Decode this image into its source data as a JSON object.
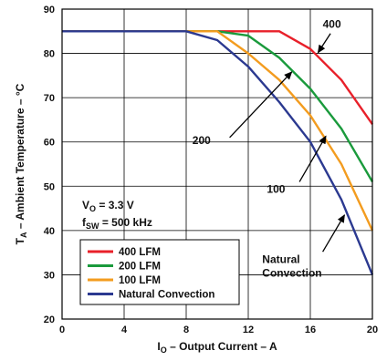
{
  "chart_data": {
    "type": "line",
    "xlabel_main": "I",
    "xlabel_sub": "O",
    "xlabel_rest": " – Output Current – A",
    "ylabel_main": "T",
    "ylabel_sub": "A",
    "ylabel_rest": " – Ambient Temperature – °C",
    "xlim": [
      0,
      20
    ],
    "ylim": [
      20,
      90
    ],
    "xticks": [
      "0",
      "4",
      "8",
      "12",
      "16",
      "20"
    ],
    "yticks": [
      "20",
      "30",
      "40",
      "50",
      "60",
      "70",
      "80",
      "90"
    ],
    "grid": true,
    "series": [
      {
        "name": "400 LFM",
        "color": "#e8202a",
        "x": [
          0,
          8,
          10,
          12,
          14,
          16,
          18,
          20
        ],
        "y": [
          85,
          85,
          85,
          85,
          85,
          81,
          74,
          64
        ]
      },
      {
        "name": "200 LFM",
        "color": "#1a9a3c",
        "x": [
          0,
          8,
          10,
          12,
          14,
          16,
          18,
          20
        ],
        "y": [
          85,
          85,
          85,
          84,
          79,
          72,
          63,
          51
        ]
      },
      {
        "name": "100 LFM",
        "color": "#f39c1f",
        "x": [
          0,
          8,
          10,
          12,
          14,
          16,
          18,
          20
        ],
        "y": [
          85,
          85,
          85,
          80,
          74,
          66,
          55,
          40
        ]
      },
      {
        "name": "Natural Convection",
        "color": "#2b3990",
        "x": [
          0,
          8,
          10,
          12,
          14,
          16,
          18,
          20
        ],
        "y": [
          85,
          85,
          83,
          77,
          69,
          60,
          47,
          30
        ]
      }
    ],
    "conditions": {
      "vo_main": "V",
      "vo_sub": "O",
      "vo_rest": " = 3.3 V",
      "fsw_main": "f",
      "fsw_sub": "SW",
      "fsw_rest": " = 500 kHz"
    },
    "annotations": [
      {
        "label": "400",
        "text_x": 16.8,
        "text_y": 85.8,
        "arrow_from": [
          17.3,
          84.5
        ],
        "arrow_to": [
          16.5,
          80.2
        ]
      },
      {
        "label": "200",
        "text_x": 8.4,
        "text_y": 59.5,
        "arrow_from": [
          10.8,
          61.0
        ],
        "arrow_to": [
          14.8,
          75.8
        ]
      },
      {
        "label": "100",
        "text_x": 13.2,
        "text_y": 48.5,
        "arrow_from": [
          15.3,
          51.0
        ],
        "arrow_to": [
          17.0,
          61.3
        ]
      },
      {
        "label": "Natural",
        "label2": "Convection",
        "text_x": 12.9,
        "text_y": 32.7,
        "arrow_from": [
          16.8,
          35.2
        ],
        "arrow_to": [
          18.2,
          43.5
        ]
      }
    ],
    "legend_position": "bottom-left"
  }
}
